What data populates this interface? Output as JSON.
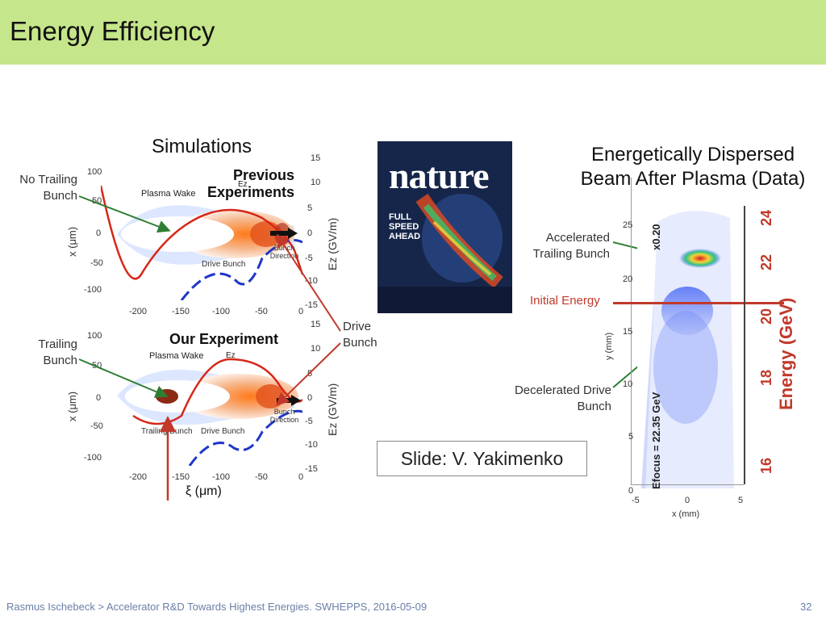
{
  "slide": {
    "title": "Energy Efficiency",
    "footer": "Rasmus Ischebeck > Accelerator R&D Towards Highest Energies. SWHEPPS, 2016-05-09",
    "page_number": "32"
  },
  "simulations": {
    "heading": "Simulations",
    "top": {
      "side_label": "No Trailing\nBunch",
      "title": "Previous Experiments",
      "plasma_wake": "Plasma Wake",
      "ez": "Ez",
      "drive_bunch": "Drive Bunch",
      "bunch_direction": "Bunch Direction",
      "y_ticks": [
        "100",
        "50",
        "0",
        "-50",
        "-100"
      ],
      "x_ticks": [
        "-200",
        "-150",
        "-100",
        "-50",
        "0"
      ],
      "right_ticks": [
        "15",
        "10",
        "5",
        "0",
        "-5",
        "-10",
        "-15"
      ],
      "y_label": "x (μm)",
      "right_label": "Ez (GV/m)"
    },
    "bottom": {
      "side_label": "Trailing\nBunch",
      "title": "Our Experiment",
      "plasma_wake": "Plasma Wake",
      "ez": "Ez",
      "trailing_bunch": "Trailing Bunch",
      "drive_bunch": "Drive Bunch",
      "bunch_direction": "Bunch Direction",
      "y_ticks": [
        "100",
        "50",
        "0",
        "-50",
        "-100"
      ],
      "x_ticks": [
        "-200",
        "-150",
        "-100",
        "-50",
        "0"
      ],
      "right_ticks": [
        "15",
        "10",
        "5",
        "0",
        "-5",
        "-10",
        "-15"
      ],
      "y_label": "x (μm)",
      "right_label": "Ez (GV/m)",
      "xi_label": "ξ (μm)"
    },
    "drive_bunch_label": "Drive\nBunch"
  },
  "nature": {
    "masthead": "nature",
    "headline": "FULL SPEED AHEAD"
  },
  "data": {
    "heading": "Energetically Dispersed Beam After Plasma (Data)",
    "accelerated_label": "Accelerated\nTrailing Bunch",
    "initial_energy": "Initial Energy",
    "decelerated_label": "Decelerated Drive\nBunch",
    "credit": "Slide: V. Yakimenko",
    "y_ticks": [
      "25",
      "20",
      "15",
      "10",
      "5",
      "0"
    ],
    "x_ticks": [
      "-5",
      "0",
      "5"
    ],
    "x_label": "x (mm)",
    "y_label": "y (mm)",
    "efocus": "Efocus = 22.35 GeV",
    "scale": "x0.20",
    "energy_ticks": [
      "24",
      "22",
      "20",
      "18",
      "16"
    ],
    "energy_label": "Energy (GeV)"
  }
}
